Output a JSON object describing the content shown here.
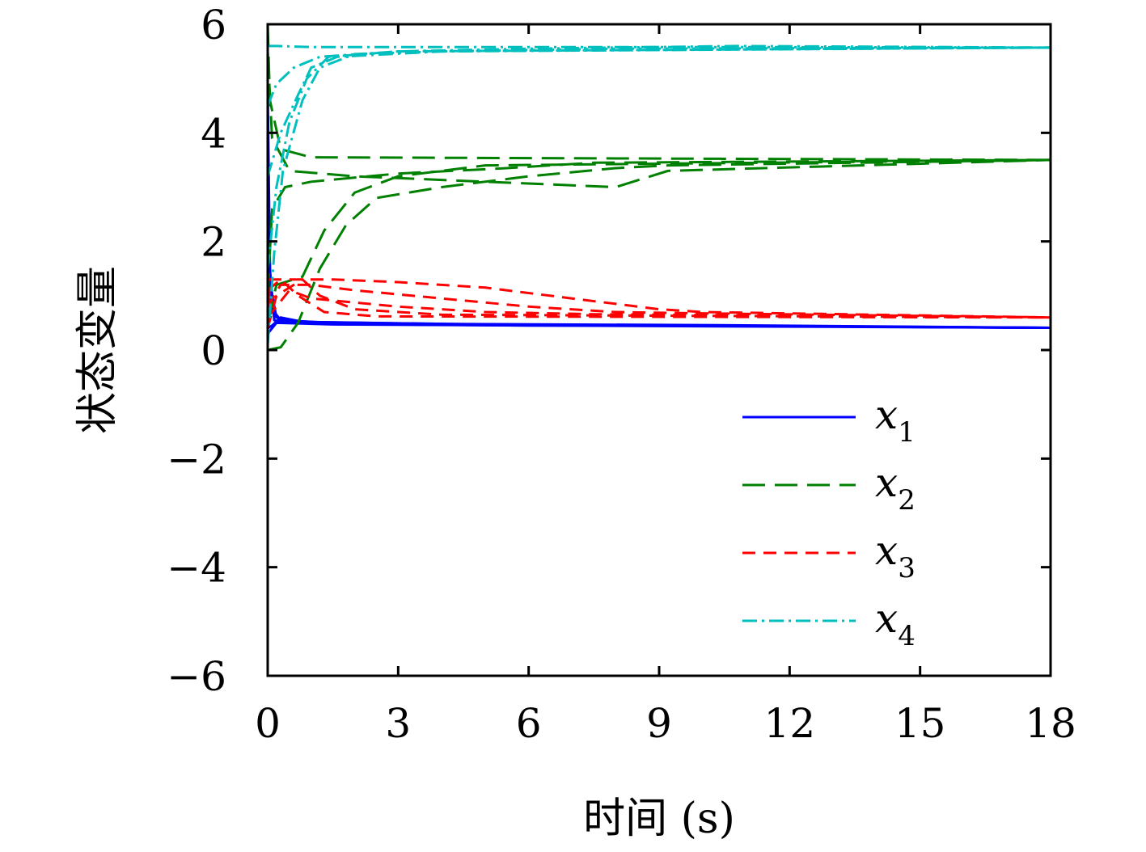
{
  "chart_data": {
    "type": "line",
    "xlabel": "时间 (s)",
    "ylabel": "状态变量",
    "xlim": [
      0,
      18
    ],
    "ylim": [
      -6,
      6
    ],
    "xticks": [
      0,
      3,
      6,
      9,
      12,
      15,
      18
    ],
    "yticks": [
      -6,
      -4,
      -2,
      0,
      2,
      4,
      6
    ],
    "ytick_labels": [
      "−6",
      "−4",
      "−2",
      "0",
      "2",
      "4",
      "6"
    ],
    "grid": false,
    "legend_position": "lower-right",
    "series": [
      {
        "name": "x",
        "subscript": "1",
        "color": "#0000ff",
        "dash": "solid",
        "trajectories": [
          [
            [
              0,
              4.8
            ],
            [
              0.05,
              1.5
            ],
            [
              0.15,
              0.55
            ],
            [
              0.4,
              0.5
            ],
            [
              3,
              0.47
            ],
            [
              6,
              0.45
            ],
            [
              10.1,
              0.45
            ],
            [
              18,
              0.41
            ]
          ],
          [
            [
              0,
              3.6
            ],
            [
              0.06,
              1.2
            ],
            [
              0.2,
              0.6
            ],
            [
              0.6,
              0.52
            ],
            [
              4,
              0.48
            ],
            [
              9.9,
              0.46
            ],
            [
              18,
              0.41
            ]
          ],
          [
            [
              0,
              2.5
            ],
            [
              0.05,
              0.8
            ],
            [
              0.3,
              0.55
            ],
            [
              2,
              0.48
            ],
            [
              7,
              0.46
            ],
            [
              18,
              0.41
            ]
          ],
          [
            [
              0,
              0.4
            ],
            [
              0.1,
              0.45
            ],
            [
              0.3,
              0.6
            ],
            [
              0.8,
              0.52
            ],
            [
              5,
              0.47
            ],
            [
              18,
              0.41
            ]
          ],
          [
            [
              0,
              0.3
            ],
            [
              0.2,
              0.5
            ],
            [
              1.5,
              0.47
            ],
            [
              9,
              0.44
            ],
            [
              18,
              0.41
            ]
          ]
        ]
      },
      {
        "name": "x",
        "subscript": "2",
        "color": "#008000",
        "dash": "28,12",
        "trajectories": [
          [
            [
              0,
              6.0
            ],
            [
              0.05,
              4.6
            ],
            [
              0.3,
              3.7
            ],
            [
              1,
              3.55
            ],
            [
              18,
              3.5
            ]
          ],
          [
            [
              0,
              5.5
            ],
            [
              0.1,
              3.9
            ],
            [
              0.5,
              3.3
            ],
            [
              2,
              3.2
            ],
            [
              5,
              3.1
            ],
            [
              8,
              3.0
            ],
            [
              9.2,
              3.3
            ],
            [
              18,
              3.5
            ]
          ],
          [
            [
              0,
              0.0
            ],
            [
              0.3,
              0.05
            ],
            [
              0.7,
              0.5
            ],
            [
              1.2,
              1.5
            ],
            [
              1.8,
              2.3
            ],
            [
              2.5,
              2.8
            ],
            [
              4,
              3.0
            ],
            [
              6,
              3.2
            ],
            [
              8,
              3.35
            ],
            [
              9.2,
              3.4
            ],
            [
              18,
              3.5
            ]
          ],
          [
            [
              0,
              1.0
            ],
            [
              0.1,
              2.6
            ],
            [
              0.4,
              3.0
            ],
            [
              1,
              3.1
            ],
            [
              3,
              3.25
            ],
            [
              5.5,
              3.35
            ],
            [
              7.5,
              3.45
            ],
            [
              18,
              3.5
            ]
          ],
          [
            [
              0,
              0.5
            ],
            [
              0.2,
              1.2
            ],
            [
              0.8,
              1.35
            ],
            [
              1.3,
              2.2
            ],
            [
              2,
              2.9
            ],
            [
              3,
              3.2
            ],
            [
              5,
              3.4
            ],
            [
              18,
              3.5
            ]
          ]
        ]
      },
      {
        "name": "x",
        "subscript": "3",
        "color": "#ff0000",
        "dash": "16,10",
        "trajectories": [
          [
            [
              0,
              0.5
            ],
            [
              0.05,
              1.3
            ],
            [
              1,
              1.3
            ],
            [
              1.5,
              1.3
            ],
            [
              3,
              1.25
            ],
            [
              5,
              1.15
            ],
            [
              7,
              0.95
            ],
            [
              9,
              0.75
            ],
            [
              10,
              0.7
            ],
            [
              18,
              0.6
            ]
          ],
          [
            [
              0,
              0.4
            ],
            [
              0.2,
              1.0
            ],
            [
              0.8,
              1.3
            ],
            [
              1.2,
              1.0
            ],
            [
              2,
              0.75
            ],
            [
              4,
              0.65
            ],
            [
              18,
              0.6
            ]
          ],
          [
            [
              0,
              0.8
            ],
            [
              0.3,
              1.2
            ],
            [
              1,
              1.2
            ],
            [
              2,
              1.1
            ],
            [
              4,
              0.95
            ],
            [
              6,
              0.8
            ],
            [
              8,
              0.7
            ],
            [
              9.5,
              0.68
            ],
            [
              18,
              0.6
            ]
          ],
          [
            [
              0,
              1.1
            ],
            [
              0.3,
              1.3
            ],
            [
              0.7,
              1.0
            ],
            [
              1.3,
              0.7
            ],
            [
              2.5,
              0.62
            ],
            [
              18,
              0.6
            ]
          ],
          [
            [
              0,
              0.6
            ],
            [
              0.5,
              1.1
            ],
            [
              1,
              0.95
            ],
            [
              3,
              0.8
            ],
            [
              5,
              0.7
            ],
            [
              7.5,
              0.66
            ],
            [
              18,
              0.6
            ]
          ]
        ]
      },
      {
        "name": "x",
        "subscript": "4",
        "color": "#00bfbf",
        "dash": "18,6,3,6",
        "trajectories": [
          [
            [
              0,
              5.6
            ],
            [
              0.2,
              5.6
            ],
            [
              1,
              5.58
            ],
            [
              5,
              5.58
            ],
            [
              10.8,
              5.58
            ],
            [
              18,
              5.57
            ]
          ],
          [
            [
              0,
              4.5
            ],
            [
              0.2,
              4.9
            ],
            [
              0.6,
              5.2
            ],
            [
              1.2,
              5.4
            ],
            [
              3,
              5.5
            ],
            [
              6,
              5.55
            ],
            [
              10.8,
              5.6
            ],
            [
              18,
              5.57
            ]
          ],
          [
            [
              0,
              0.1
            ],
            [
              0.15,
              1.8
            ],
            [
              0.35,
              3.3
            ],
            [
              0.8,
              4.6
            ],
            [
              1.2,
              5.2
            ],
            [
              2,
              5.45
            ],
            [
              4,
              5.5
            ],
            [
              8,
              5.55
            ],
            [
              18,
              5.57
            ]
          ],
          [
            [
              0,
              3.2
            ],
            [
              0.3,
              4.0
            ],
            [
              0.7,
              4.7
            ],
            [
              1,
              5.2
            ],
            [
              1.6,
              5.4
            ],
            [
              4,
              5.5
            ],
            [
              18,
              5.57
            ]
          ],
          [
            [
              0,
              1.5
            ],
            [
              0.2,
              3.0
            ],
            [
              0.5,
              4.2
            ],
            [
              0.9,
              5.0
            ],
            [
              1.4,
              5.4
            ],
            [
              3,
              5.5
            ],
            [
              18,
              5.57
            ]
          ]
        ]
      }
    ]
  }
}
